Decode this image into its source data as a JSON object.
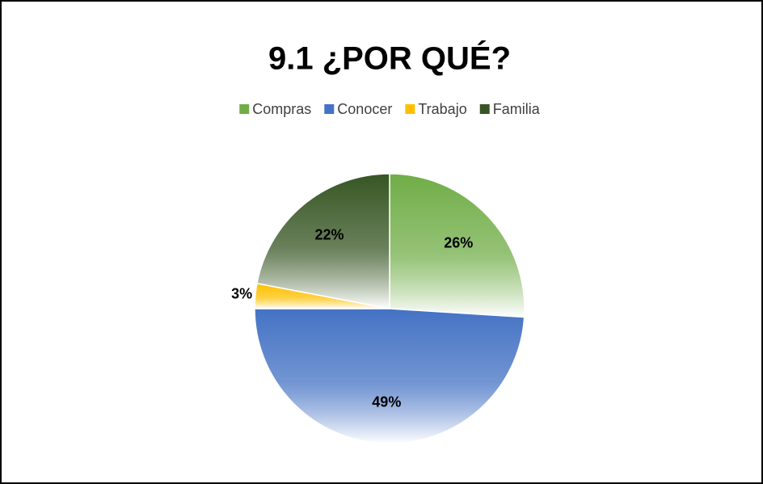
{
  "chart_data": {
    "type": "pie",
    "title": "9.1 ¿POR QUÉ?",
    "categories": [
      "Compras",
      "Conocer",
      "Trabajo",
      "Familia"
    ],
    "values": [
      26,
      49,
      3,
      22
    ],
    "value_labels": [
      "26%",
      "49%",
      "3%",
      "22%"
    ],
    "colors": [
      "#70ad47",
      "#4472c4",
      "#ffc000",
      "#375623"
    ],
    "legend": "top"
  }
}
